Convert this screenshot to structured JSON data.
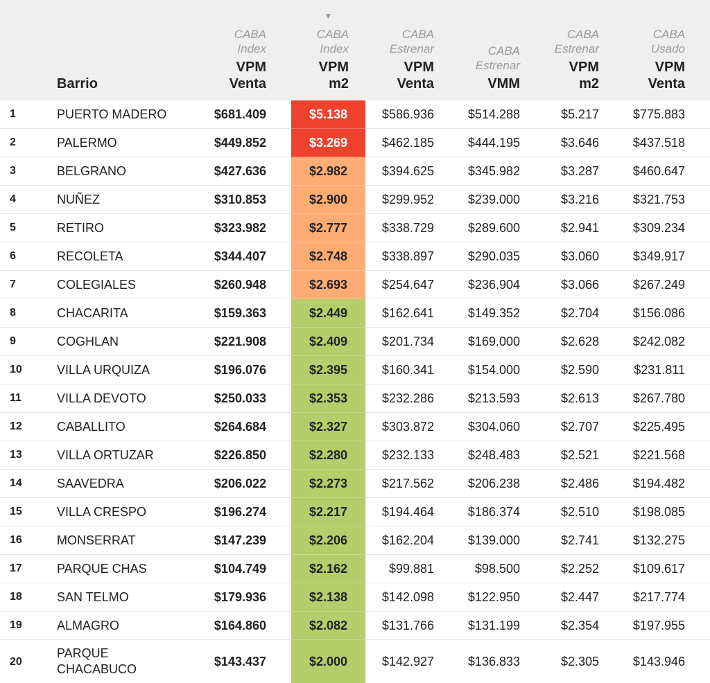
{
  "colors": {
    "header_bg": "#efefef",
    "red": "#f0412d",
    "orange": "#fdac73",
    "green": "#b5cd6a"
  },
  "header": {
    "barrio": "Barrio",
    "cols": [
      {
        "sub": [
          "CABA",
          "Index"
        ],
        "main": [
          "VPM",
          "Venta"
        ]
      },
      {
        "sub": [
          "CABA",
          "Index"
        ],
        "main": [
          "VPM",
          "m2"
        ],
        "sort_icon": "sort-down-arrow-icon"
      },
      {
        "sub": [
          "CABA",
          "Estrenar"
        ],
        "main": [
          "VPM",
          "Venta"
        ]
      },
      {
        "sub": [
          "CABA",
          "Estrenar"
        ],
        "main": [
          "",
          "VMM"
        ]
      },
      {
        "sub": [
          "CABA",
          "Estrenar"
        ],
        "main": [
          "VPM",
          "m2"
        ]
      },
      {
        "sub": [
          "CABA",
          "Usado"
        ],
        "main": [
          "VPM",
          "Venta"
        ]
      }
    ],
    "sort_arrow": "▼"
  },
  "rows": [
    {
      "rank": "1",
      "barrio": "PUERTO MADERO",
      "idx_venta": "$681.409",
      "idx_m2": "$5.138",
      "heat": "red",
      "est_venta": "$586.936",
      "est_vmm": "$514.288",
      "est_m2": "$5.217",
      "usado_venta": "$775.883"
    },
    {
      "rank": "2",
      "barrio": "PALERMO",
      "idx_venta": "$449.852",
      "idx_m2": "$3.269",
      "heat": "red",
      "est_venta": "$462.185",
      "est_vmm": "$444.195",
      "est_m2": "$3.646",
      "usado_venta": "$437.518"
    },
    {
      "rank": "3",
      "barrio": "BELGRANO",
      "idx_venta": "$427.636",
      "idx_m2": "$2.982",
      "heat": "orange",
      "est_venta": "$394.625",
      "est_vmm": "$345.982",
      "est_m2": "$3.287",
      "usado_venta": "$460.647"
    },
    {
      "rank": "4",
      "barrio": "NUÑEZ",
      "idx_venta": "$310.853",
      "idx_m2": "$2.900",
      "heat": "orange",
      "est_venta": "$299.952",
      "est_vmm": "$239.000",
      "est_m2": "$3.216",
      "usado_venta": "$321.753"
    },
    {
      "rank": "5",
      "barrio": "RETIRO",
      "idx_venta": "$323.982",
      "idx_m2": "$2.777",
      "heat": "orange",
      "est_venta": "$338.729",
      "est_vmm": "$289.600",
      "est_m2": "$2.941",
      "usado_venta": "$309.234"
    },
    {
      "rank": "6",
      "barrio": "RECOLETA",
      "idx_venta": "$344.407",
      "idx_m2": "$2.748",
      "heat": "orange",
      "est_venta": "$338.897",
      "est_vmm": "$290.035",
      "est_m2": "$3.060",
      "usado_venta": "$349.917"
    },
    {
      "rank": "7",
      "barrio": "COLEGIALES",
      "idx_venta": "$260.948",
      "idx_m2": "$2.693",
      "heat": "orange",
      "est_venta": "$254.647",
      "est_vmm": "$236.904",
      "est_m2": "$3.066",
      "usado_venta": "$267.249"
    },
    {
      "rank": "8",
      "barrio": "CHACARITA",
      "idx_venta": "$159.363",
      "idx_m2": "$2.449",
      "heat": "green",
      "est_venta": "$162.641",
      "est_vmm": "$149.352",
      "est_m2": "$2.704",
      "usado_venta": "$156.086"
    },
    {
      "rank": "9",
      "barrio": "COGHLAN",
      "idx_venta": "$221.908",
      "idx_m2": "$2.409",
      "heat": "green",
      "est_venta": "$201.734",
      "est_vmm": "$169.000",
      "est_m2": "$2.628",
      "usado_venta": "$242.082"
    },
    {
      "rank": "10",
      "barrio": "VILLA URQUIZA",
      "idx_venta": "$196.076",
      "idx_m2": "$2.395",
      "heat": "green",
      "est_venta": "$160.341",
      "est_vmm": "$154.000",
      "est_m2": "$2.590",
      "usado_venta": "$231.811"
    },
    {
      "rank": "11",
      "barrio": "VILLA DEVOTO",
      "idx_venta": "$250.033",
      "idx_m2": "$2.353",
      "heat": "green",
      "est_venta": "$232.286",
      "est_vmm": "$213.593",
      "est_m2": "$2.613",
      "usado_venta": "$267.780"
    },
    {
      "rank": "12",
      "barrio": "CABALLITO",
      "idx_venta": "$264.684",
      "idx_m2": "$2.327",
      "heat": "green",
      "est_venta": "$303.872",
      "est_vmm": "$304.060",
      "est_m2": "$2.707",
      "usado_venta": "$225.495"
    },
    {
      "rank": "13",
      "barrio": "VILLA ORTUZAR",
      "idx_venta": "$226.850",
      "idx_m2": "$2.280",
      "heat": "green",
      "est_venta": "$232.133",
      "est_vmm": "$248.483",
      "est_m2": "$2.521",
      "usado_venta": "$221.568"
    },
    {
      "rank": "14",
      "barrio": "SAAVEDRA",
      "idx_venta": "$206.022",
      "idx_m2": "$2.273",
      "heat": "green",
      "est_venta": "$217.562",
      "est_vmm": "$206.238",
      "est_m2": "$2.486",
      "usado_venta": "$194.482"
    },
    {
      "rank": "15",
      "barrio": "VILLA CRESPO",
      "idx_venta": "$196.274",
      "idx_m2": "$2.217",
      "heat": "green",
      "est_venta": "$194.464",
      "est_vmm": "$186.374",
      "est_m2": "$2.510",
      "usado_venta": "$198.085"
    },
    {
      "rank": "16",
      "barrio": "MONSERRAT",
      "idx_venta": "$147.239",
      "idx_m2": "$2.206",
      "heat": "green",
      "est_venta": "$162.204",
      "est_vmm": "$139.000",
      "est_m2": "$2.741",
      "usado_venta": "$132.275"
    },
    {
      "rank": "17",
      "barrio": "PARQUE CHAS",
      "idx_venta": "$104.749",
      "idx_m2": "$2.162",
      "heat": "green",
      "est_venta": "$99.881",
      "est_vmm": "$98.500",
      "est_m2": "$2.252",
      "usado_venta": "$109.617"
    },
    {
      "rank": "18",
      "barrio": "SAN TELMO",
      "idx_venta": "$179.936",
      "idx_m2": "$2.138",
      "heat": "green",
      "est_venta": "$142.098",
      "est_vmm": "$122.950",
      "est_m2": "$2.447",
      "usado_venta": "$217.774"
    },
    {
      "rank": "19",
      "barrio": "ALMAGRO",
      "idx_venta": "$164.860",
      "idx_m2": "$2.082",
      "heat": "green",
      "est_venta": "$131.766",
      "est_vmm": "$131.199",
      "est_m2": "$2.354",
      "usado_venta": "$197.955"
    },
    {
      "rank": "20",
      "barrio": "PARQUE CHACABUCO",
      "idx_venta": "$143.437",
      "idx_m2": "$2.000",
      "heat": "green",
      "est_venta": "$142.927",
      "est_vmm": "$136.833",
      "est_m2": "$2.305",
      "usado_venta": "$143.946"
    }
  ]
}
